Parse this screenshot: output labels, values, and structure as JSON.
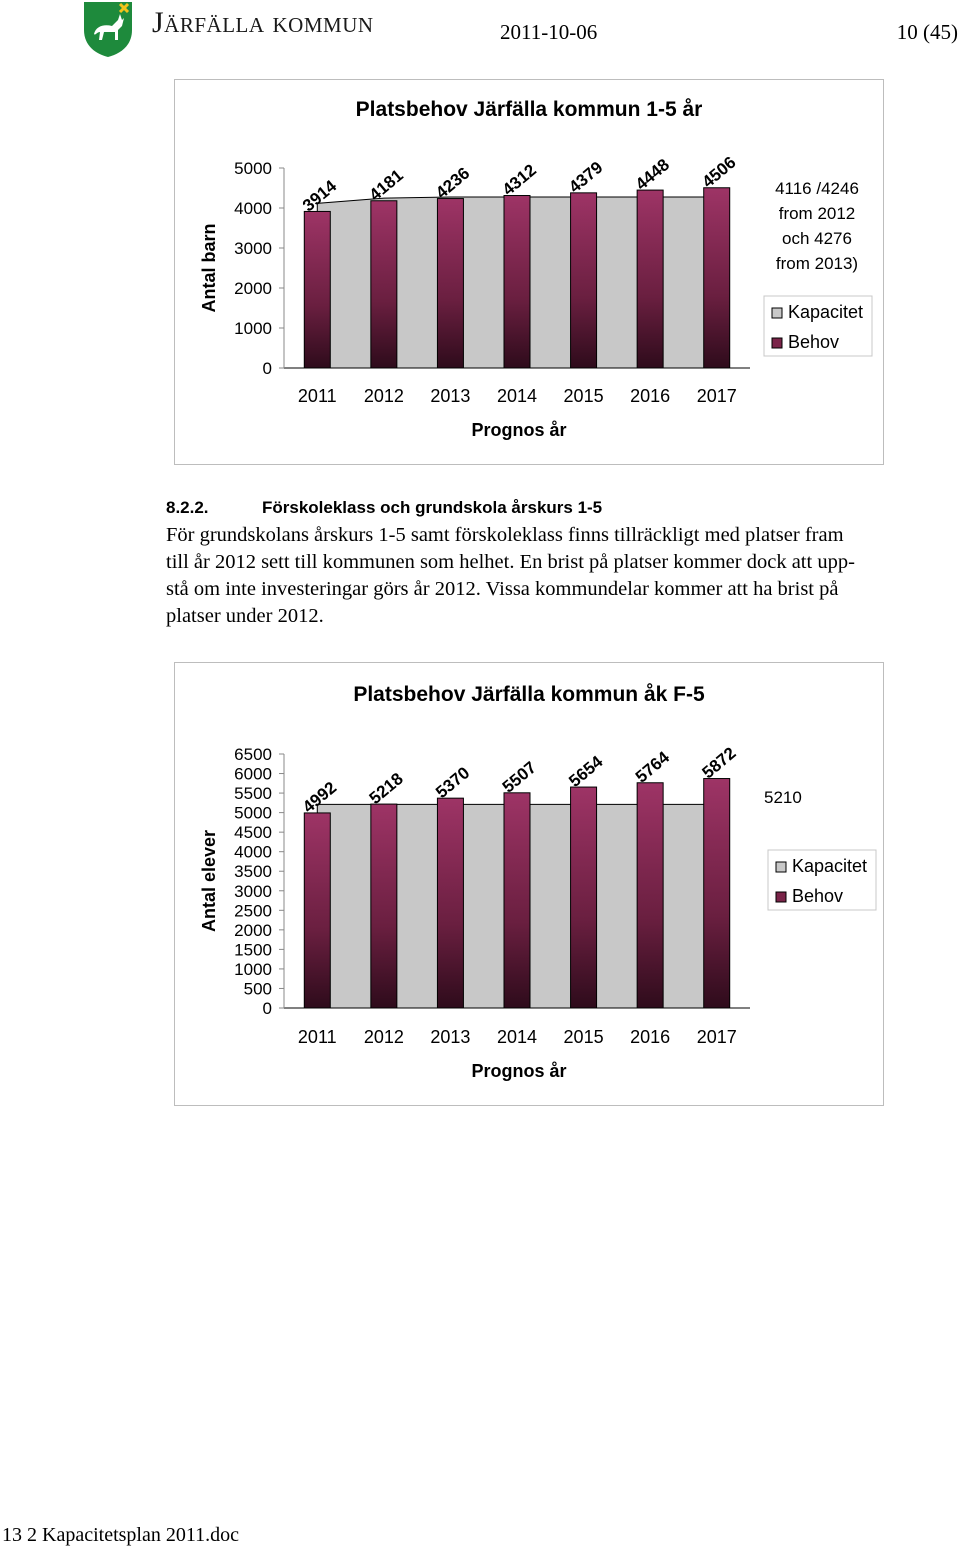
{
  "header": {
    "organization": "Järfälla kommun",
    "date": "2011-10-06",
    "page": "10 (45)",
    "logo_icon": "jarfalla-coat-of-arms-icon"
  },
  "chart1": {
    "chart_data": {
      "type": "bar",
      "title": "Platsbehov Järfälla kommun 1-5 år",
      "xlabel": "Prognos år",
      "ylabel": "Antal barn",
      "categories": [
        "2011",
        "2012",
        "2013",
        "2014",
        "2015",
        "2016",
        "2017"
      ],
      "yticks": [
        "0",
        "1000",
        "2000",
        "3000",
        "4000",
        "5000"
      ],
      "ylim": [
        0,
        5000
      ],
      "series": [
        {
          "name": "Kapacitet",
          "type": "area",
          "values": [
            4116,
            4246,
            4276,
            4276,
            4276,
            4276,
            4276
          ],
          "color": "#c8c8c8"
        },
        {
          "name": "Behov",
          "type": "bar",
          "values": [
            3914,
            4181,
            4236,
            4312,
            4379,
            4448,
            4506
          ],
          "color": "#8f2a55"
        }
      ],
      "data_labels": [
        "3914",
        "4181",
        "4236",
        "4312",
        "4379",
        "4448",
        "4506"
      ],
      "annotation": [
        "4116 /4246",
        "from 2012",
        "och 4276",
        "from 2013)"
      ],
      "legend": [
        "Kapacitet",
        "Behov"
      ],
      "legend_position": "right",
      "grid": false
    }
  },
  "section": {
    "number": "8.2.2.",
    "heading": "Förskoleklass och grundskola årskurs 1-5",
    "lines": [
      "För grundskolans årskurs 1-5 samt förskoleklass finns tillräckligt med platser fram",
      "till år 2012 sett till kommunen som helhet. En brist på platser kommer dock att upp-",
      "stå om inte investeringar görs år 2012. Vissa kommundelar kommer att ha brist på",
      "platser under 2012."
    ]
  },
  "chart2": {
    "chart_data": {
      "type": "bar",
      "title": "Platsbehov Järfälla kommun åk F-5",
      "xlabel": "Prognos år",
      "ylabel": "Antal elever",
      "categories": [
        "2011",
        "2012",
        "2013",
        "2014",
        "2015",
        "2016",
        "2017"
      ],
      "yticks": [
        "0",
        "500",
        "1000",
        "1500",
        "2000",
        "2500",
        "3000",
        "3500",
        "4000",
        "4500",
        "5000",
        "5500",
        "6000",
        "6500"
      ],
      "ylim": [
        0,
        6500
      ],
      "series": [
        {
          "name": "Kapacitet",
          "type": "area",
          "values": [
            5210,
            5210,
            5210,
            5210,
            5210,
            5210,
            5210
          ],
          "color": "#c8c8c8"
        },
        {
          "name": "Behov",
          "type": "bar",
          "values": [
            4992,
            5218,
            5370,
            5507,
            5654,
            5764,
            5872
          ],
          "color": "#8f2a55"
        }
      ],
      "data_labels": [
        "4992",
        "5218",
        "5370",
        "5507",
        "5654",
        "5764",
        "5872"
      ],
      "annotation": [
        "5210"
      ],
      "legend": [
        "Kapacitet",
        "Behov"
      ],
      "legend_position": "right",
      "grid": false
    }
  },
  "footer": {
    "text": "13 2  Kapacitetsplan 2011.doc"
  }
}
